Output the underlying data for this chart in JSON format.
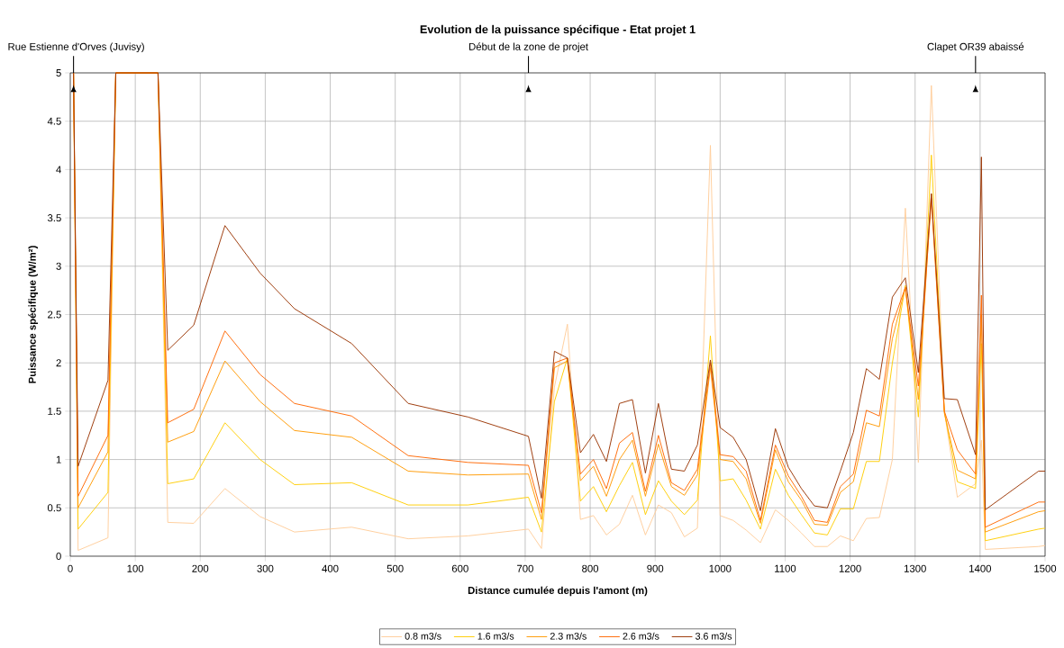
{
  "chart_data": {
    "type": "line",
    "title": "Evolution de la puissance spécifique - Etat projet 1",
    "xlabel": "Distance cumulée depuis l'amont (m)",
    "ylabel": "Puissance spécifique (W/m²)",
    "x": [
      5,
      12,
      58,
      70,
      135,
      150,
      190,
      238,
      292,
      345,
      433,
      520,
      612,
      705,
      725,
      745,
      765,
      785,
      805,
      825,
      845,
      865,
      885,
      905,
      925,
      945,
      965,
      985,
      1000,
      1020,
      1040,
      1062,
      1085,
      1105,
      1125,
      1145,
      1165,
      1185,
      1205,
      1225,
      1245,
      1265,
      1285,
      1305,
      1325,
      1345,
      1365,
      1393,
      1402,
      1408,
      1490,
      1500
    ],
    "series": [
      {
        "name": "0.8 m3/s",
        "color": "#ffcc99",
        "values": [
          5,
          0.06,
          0.19,
          5,
          5,
          0.35,
          0.34,
          0.7,
          0.41,
          0.25,
          0.3,
          0.18,
          0.21,
          0.28,
          0.08,
          1.75,
          2.4,
          0.38,
          0.42,
          0.22,
          0.33,
          0.63,
          0.22,
          0.53,
          0.45,
          0.2,
          0.29,
          4.25,
          0.42,
          0.37,
          0.27,
          0.14,
          0.48,
          0.37,
          0.24,
          0.1,
          0.1,
          0.21,
          0.16,
          0.39,
          0.4,
          1.0,
          3.6,
          0.97,
          4.87,
          1.5,
          0.61,
          0.75,
          1.2,
          0.07,
          0.1,
          0.11
        ]
      },
      {
        "name": "1.6 m3/s",
        "color": "#ffcc00",
        "values": [
          5,
          0.28,
          0.66,
          5,
          5,
          0.75,
          0.8,
          1.38,
          1.0,
          0.74,
          0.76,
          0.53,
          0.53,
          0.61,
          0.25,
          1.6,
          2.05,
          0.57,
          0.72,
          0.46,
          0.73,
          0.97,
          0.43,
          0.78,
          0.57,
          0.43,
          0.58,
          2.28,
          0.78,
          0.8,
          0.58,
          0.28,
          0.9,
          0.63,
          0.43,
          0.24,
          0.22,
          0.49,
          0.49,
          0.98,
          0.98,
          2.0,
          2.8,
          1.44,
          4.15,
          1.5,
          0.77,
          0.7,
          2.2,
          0.16,
          0.28,
          0.29
        ]
      },
      {
        "name": "2.3 m3/s",
        "color": "#ff9900",
        "values": [
          5,
          0.5,
          1.08,
          5,
          5,
          1.18,
          1.29,
          2.02,
          1.6,
          1.3,
          1.23,
          0.88,
          0.84,
          0.85,
          0.38,
          1.95,
          2.02,
          0.78,
          0.93,
          0.62,
          1.0,
          1.2,
          0.62,
          1.16,
          0.72,
          0.63,
          0.84,
          1.95,
          1.0,
          0.98,
          0.8,
          0.34,
          1.1,
          0.77,
          0.58,
          0.33,
          0.32,
          0.66,
          0.77,
          1.38,
          1.34,
          2.25,
          2.78,
          1.62,
          3.75,
          1.48,
          0.89,
          0.8,
          2.5,
          0.25,
          0.46,
          0.47
        ]
      },
      {
        "name": "2.6 m3/s",
        "color": "#ff6600",
        "values": [
          5,
          0.62,
          1.25,
          5,
          5,
          1.38,
          1.52,
          2.33,
          1.88,
          1.58,
          1.45,
          1.04,
          0.97,
          0.94,
          0.45,
          2.0,
          2.05,
          0.85,
          1.0,
          0.7,
          1.17,
          1.28,
          0.67,
          1.25,
          0.76,
          0.68,
          0.9,
          2.0,
          1.05,
          1.03,
          0.88,
          0.37,
          1.15,
          0.83,
          0.62,
          0.37,
          0.35,
          0.72,
          0.85,
          1.51,
          1.45,
          2.4,
          2.78,
          1.76,
          3.7,
          1.5,
          1.1,
          0.85,
          2.7,
          0.3,
          0.56,
          0.56
        ]
      },
      {
        "name": "3.6 m3/s",
        "color": "#993300",
        "values": [
          5,
          0.93,
          1.82,
          5,
          5,
          2.13,
          2.39,
          3.42,
          2.93,
          2.56,
          2.2,
          1.58,
          1.44,
          1.24,
          0.6,
          2.12,
          2.05,
          1.07,
          1.26,
          0.98,
          1.58,
          1.62,
          0.86,
          1.58,
          0.9,
          0.88,
          1.15,
          2.03,
          1.33,
          1.23,
          1.0,
          0.47,
          1.32,
          0.92,
          0.7,
          0.52,
          0.5,
          0.88,
          1.28,
          1.94,
          1.83,
          2.68,
          2.88,
          1.9,
          3.75,
          1.63,
          1.62,
          1.05,
          4.13,
          0.48,
          0.88,
          0.88
        ]
      }
    ],
    "xlim": [
      0,
      1500
    ],
    "xticks": [
      0,
      100,
      200,
      300,
      400,
      500,
      600,
      700,
      800,
      900,
      1000,
      1100,
      1200,
      1300,
      1400,
      1500
    ],
    "ylim": [
      0,
      5
    ],
    "yticks": [
      0,
      0.5,
      1,
      1.5,
      2,
      2.5,
      3,
      3.5,
      4,
      4.5,
      5
    ],
    "grid": true,
    "legend": "bottom",
    "annotations": [
      {
        "text": "Rue Estienne d'Orves (Juvisy)",
        "x": 5
      },
      {
        "text": "Début de la zone de projet",
        "x": 705
      },
      {
        "text": "Clapet OR39 abaissé",
        "x": 1393
      }
    ]
  }
}
